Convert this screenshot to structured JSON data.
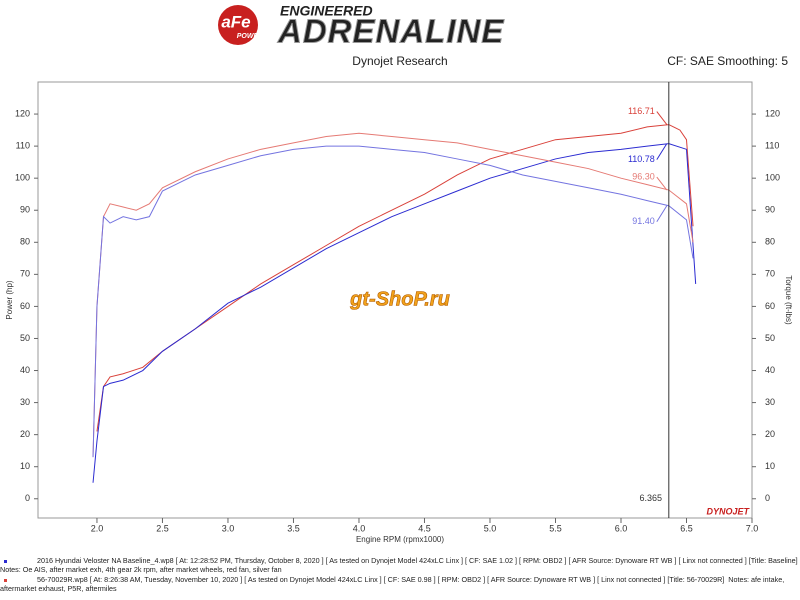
{
  "header": {
    "brand": "aFe",
    "brand_sub": "POWER",
    "tagline": "ENGINEERED",
    "title": "ADRENALINE"
  },
  "chart_data": {
    "type": "line",
    "subtitle": "Dynojet Research",
    "corner_note": "CF: SAE Smoothing: 5",
    "xlabel": "Engine RPM (rpmx1000)",
    "ylabel": "Power (hp)",
    "y2label": "Torque (ft-lbs)",
    "xlim": [
      1.55,
      7.0
    ],
    "xticks": [
      {
        "value": 2,
        "label": "2.0"
      },
      2.5,
      {
        "value": 3,
        "label": "3.0"
      },
      3.5,
      {
        "value": 4,
        "label": "4.0"
      },
      4.5,
      {
        "value": 5,
        "label": "5.0"
      },
      5.5,
      {
        "value": 6,
        "label": "6.0"
      },
      6.5,
      {
        "value": 7,
        "label": "7.0"
      }
    ],
    "ylim": [
      -6,
      130
    ],
    "yticks": [
      0,
      10,
      20,
      30,
      40,
      50,
      60,
      70,
      80,
      90,
      100,
      110,
      120
    ],
    "y2lim": [
      -6,
      130
    ],
    "y2ticks": [
      0,
      10,
      20,
      30,
      40,
      50,
      60,
      70,
      80,
      90,
      100,
      110,
      120
    ],
    "series": [
      {
        "color": "#d9413a",
        "x": [
          2.0,
          2.05,
          2.1,
          2.2,
          2.35,
          2.5,
          2.75,
          3.0,
          3.25,
          3.5,
          3.75,
          4.0,
          4.25,
          4.5,
          4.75,
          5.0,
          5.25,
          5.5,
          5.75,
          6.0,
          6.2,
          6.365,
          6.45,
          6.5,
          6.55
        ],
        "values": [
          21,
          35,
          38,
          39,
          41,
          46,
          53,
          60,
          67,
          73,
          79,
          85,
          90,
          95,
          101,
          106,
          109,
          112,
          113,
          114,
          116,
          116.71,
          115,
          112,
          85
        ]
      },
      {
        "color": "#2b2bd1",
        "x": [
          1.97,
          2.0,
          2.05,
          2.1,
          2.2,
          2.35,
          2.5,
          2.75,
          3.0,
          3.25,
          3.5,
          3.75,
          4.0,
          4.25,
          4.5,
          4.75,
          5.0,
          5.25,
          5.5,
          5.75,
          6.0,
          6.2,
          6.365,
          6.5,
          6.57
        ],
        "values": [
          5,
          18,
          35,
          36,
          37,
          40,
          46,
          53,
          61,
          66,
          72,
          78,
          83,
          88,
          92,
          96,
          100,
          103,
          106,
          108,
          109,
          110,
          110.78,
          109,
          67
        ]
      },
      {
        "color": "#e57a74",
        "axis": "y2",
        "x": [
          1.97,
          2.0,
          2.05,
          2.1,
          2.2,
          2.3,
          2.4,
          2.5,
          2.75,
          3.0,
          3.25,
          3.5,
          3.75,
          4.0,
          4.25,
          4.5,
          4.75,
          5.0,
          5.25,
          5.5,
          5.75,
          6.0,
          6.2,
          6.365,
          6.5,
          6.55
        ],
        "values": [
          13,
          60,
          88,
          92,
          91,
          90,
          92,
          97,
          102,
          106,
          109,
          111,
          113,
          114,
          113,
          112,
          111,
          109,
          107,
          105,
          103,
          100,
          98,
          96.3,
          92,
          80
        ]
      },
      {
        "color": "#7474e0",
        "axis": "y2",
        "x": [
          1.97,
          2.0,
          2.05,
          2.1,
          2.2,
          2.3,
          2.4,
          2.5,
          2.75,
          3.0,
          3.25,
          3.5,
          3.75,
          4.0,
          4.25,
          4.5,
          4.75,
          5.0,
          5.25,
          5.5,
          5.75,
          6.0,
          6.2,
          6.365,
          6.5,
          6.55
        ],
        "values": [
          13,
          60,
          88,
          86,
          88,
          87,
          88,
          96,
          101,
          104,
          107,
          109,
          110,
          110,
          109,
          108,
          106,
          104,
          101,
          99,
          97,
          95,
          93,
          91.4,
          87,
          75
        ]
      }
    ],
    "cursor": {
      "x": 6.365,
      "readouts": [
        116.71,
        110.78,
        {
          "value": 96.3,
          "label": "96.30"
        },
        {
          "value": 91.4,
          "label": "91.40"
        }
      ]
    },
    "watermark": "gt-ShoP.ru",
    "maker_logo": "DYNOJET"
  },
  "runs": [
    {
      "color": "#2b2bd1",
      "text": "2016 Hyundai Veloster NA Baseline_4.wp8 [ At: 12:28:52 PM, Thursday, October 8, 2020 ] [ As tested on Dynojet Model 424xLC Linx ] [ CF: SAE 1.02 ] [ RPM: OBD2 ] [ AFR Source: Dynoware RT WB ] [ Linx not connected ] [Title: Baseline]  Notes: Oe AIS, after market exh, 4th gear 2k rpm, after market wheels, red fan, silver fan"
    },
    {
      "color": "#d9413a",
      "text": "56-70029R.wp8 [ At: 8:26:38 AM, Tuesday, November 10, 2020 ] [ As tested on Dynojet Model 424xLC Linx ] [ CF: SAE 0.98 ] [ RPM: OBD2 ] [ AFR Source: Dynoware RT WB ] [ Linx not connected ] [Title: 56-70029R]  Notes: afe intake, aftermarket exhaust, P5R, aftermiles"
    }
  ]
}
